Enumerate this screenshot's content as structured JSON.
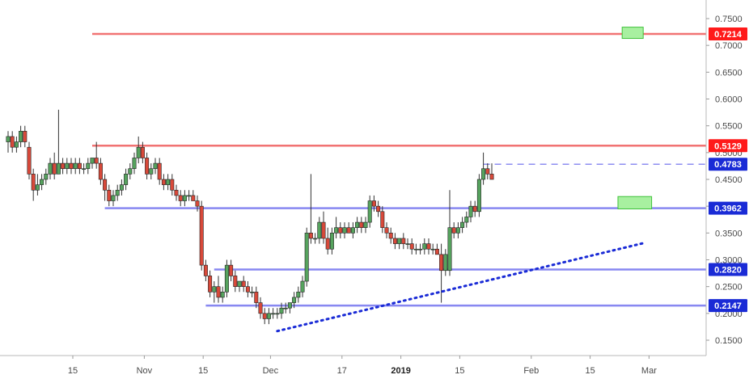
{
  "chart_data": {
    "type": "candlestick",
    "y_axis": {
      "range": [
        0.12,
        0.78
      ],
      "ticks": [
        "0.7500",
        "0.7000",
        "0.6500",
        "0.6000",
        "0.5500",
        "0.5000",
        "0.4500",
        "0.4000",
        "0.3500",
        "0.3000",
        "0.2500",
        "0.2000",
        "0.1500"
      ]
    },
    "x_axis": {
      "ticks": [
        {
          "label": "15",
          "day": 15
        },
        {
          "label": "Nov",
          "day": 32
        },
        {
          "label": "15",
          "day": 46
        },
        {
          "label": "Dec",
          "day": 62
        },
        {
          "label": "17",
          "day": 79
        },
        {
          "label": "2019",
          "day": 93,
          "bold": true
        },
        {
          "label": "15",
          "day": 107
        },
        {
          "label": "Feb",
          "day": 124
        },
        {
          "label": "15",
          "day": 138
        },
        {
          "label": "Mar",
          "day": 152
        }
      ]
    },
    "levels": [
      {
        "label": "0.7214",
        "value": 0.7214,
        "from_day": 20,
        "color": "#f06464",
        "tag_color": "#ff1a1a",
        "zone": {
          "from_day": 146,
          "to_day": 151,
          "lo": 0.713,
          "hi": 0.734
        }
      },
      {
        "label": "0.5129",
        "value": 0.5129,
        "from_day": 20,
        "color": "#f06464",
        "tag_color": "#ff1a1a"
      },
      {
        "label": "0.3962",
        "value": 0.3962,
        "from_day": 23,
        "color": "#7b7bf0",
        "tag_color": "#1a2bd6",
        "zone": {
          "from_day": 145,
          "to_day": 153,
          "lo": 0.395,
          "hi": 0.418
        }
      },
      {
        "label": "0.2820",
        "value": 0.282,
        "from_day": 49,
        "color": "#7b7bf0",
        "tag_color": "#1a2bd6"
      },
      {
        "label": "0.2147",
        "value": 0.2147,
        "from_day": 47,
        "color": "#7b7bf0",
        "tag_color": "#1a2bd6"
      }
    ],
    "current_price": {
      "label": "0.4783",
      "value": 0.4783,
      "color": "#8d8df0",
      "tag_color": "#1a2bd6"
    },
    "trendline": {
      "from": {
        "day": 64,
        "value": 0.167
      },
      "to": {
        "day": 151,
        "value": 0.331
      },
      "color": "#1a2bd6",
      "style": "dotted"
    },
    "ohlc": [
      [
        0,
        0.52,
        0.54,
        0.5,
        0.53
      ],
      [
        1,
        0.53,
        0.54,
        0.5,
        0.51
      ],
      [
        2,
        0.51,
        0.53,
        0.5,
        0.52
      ],
      [
        3,
        0.52,
        0.55,
        0.51,
        0.54
      ],
      [
        4,
        0.54,
        0.55,
        0.51,
        0.52
      ],
      [
        5,
        0.51,
        0.52,
        0.45,
        0.46
      ],
      [
        6,
        0.46,
        0.47,
        0.41,
        0.43
      ],
      [
        7,
        0.43,
        0.46,
        0.42,
        0.44
      ],
      [
        8,
        0.44,
        0.46,
        0.43,
        0.45
      ],
      [
        9,
        0.45,
        0.47,
        0.44,
        0.46
      ],
      [
        10,
        0.46,
        0.49,
        0.45,
        0.48
      ],
      [
        11,
        0.48,
        0.5,
        0.45,
        0.46
      ],
      [
        12,
        0.46,
        0.58,
        0.46,
        0.48
      ],
      [
        13,
        0.48,
        0.49,
        0.46,
        0.47
      ],
      [
        14,
        0.47,
        0.49,
        0.46,
        0.48
      ],
      [
        15,
        0.48,
        0.49,
        0.46,
        0.47
      ],
      [
        16,
        0.47,
        0.49,
        0.46,
        0.48
      ],
      [
        17,
        0.48,
        0.49,
        0.46,
        0.47
      ],
      [
        18,
        0.47,
        0.48,
        0.46,
        0.47
      ],
      [
        19,
        0.47,
        0.49,
        0.46,
        0.48
      ],
      [
        20,
        0.48,
        0.49,
        0.47,
        0.49
      ],
      [
        21,
        0.49,
        0.52,
        0.47,
        0.48
      ],
      [
        22,
        0.48,
        0.49,
        0.44,
        0.45
      ],
      [
        23,
        0.45,
        0.46,
        0.41,
        0.43
      ],
      [
        24,
        0.43,
        0.44,
        0.4,
        0.41
      ],
      [
        25,
        0.41,
        0.43,
        0.4,
        0.42
      ],
      [
        26,
        0.42,
        0.44,
        0.41,
        0.43
      ],
      [
        27,
        0.43,
        0.45,
        0.42,
        0.44
      ],
      [
        28,
        0.44,
        0.47,
        0.43,
        0.46
      ],
      [
        29,
        0.46,
        0.48,
        0.45,
        0.47
      ],
      [
        30,
        0.47,
        0.5,
        0.46,
        0.49
      ],
      [
        31,
        0.49,
        0.53,
        0.48,
        0.51
      ],
      [
        32,
        0.51,
        0.52,
        0.48,
        0.49
      ],
      [
        33,
        0.49,
        0.5,
        0.45,
        0.46
      ],
      [
        34,
        0.46,
        0.48,
        0.45,
        0.47
      ],
      [
        35,
        0.47,
        0.49,
        0.46,
        0.48
      ],
      [
        36,
        0.48,
        0.49,
        0.44,
        0.45
      ],
      [
        37,
        0.45,
        0.46,
        0.43,
        0.44
      ],
      [
        38,
        0.44,
        0.46,
        0.43,
        0.45
      ],
      [
        39,
        0.45,
        0.46,
        0.42,
        0.43
      ],
      [
        40,
        0.43,
        0.44,
        0.41,
        0.42
      ],
      [
        41,
        0.42,
        0.43,
        0.4,
        0.41
      ],
      [
        42,
        0.41,
        0.43,
        0.4,
        0.42
      ],
      [
        43,
        0.42,
        0.43,
        0.41,
        0.42
      ],
      [
        44,
        0.42,
        0.43,
        0.41,
        0.41
      ],
      [
        45,
        0.41,
        0.42,
        0.39,
        0.4
      ],
      [
        46,
        0.4,
        0.41,
        0.28,
        0.29
      ],
      [
        47,
        0.29,
        0.3,
        0.26,
        0.27
      ],
      [
        48,
        0.27,
        0.28,
        0.23,
        0.24
      ],
      [
        49,
        0.24,
        0.26,
        0.22,
        0.25
      ],
      [
        50,
        0.25,
        0.27,
        0.22,
        0.23
      ],
      [
        51,
        0.23,
        0.25,
        0.22,
        0.24
      ],
      [
        52,
        0.24,
        0.3,
        0.23,
        0.29
      ],
      [
        53,
        0.29,
        0.3,
        0.26,
        0.27
      ],
      [
        54,
        0.27,
        0.28,
        0.24,
        0.25
      ],
      [
        55,
        0.25,
        0.26,
        0.24,
        0.26
      ],
      [
        56,
        0.26,
        0.27,
        0.24,
        0.25
      ],
      [
        57,
        0.25,
        0.26,
        0.23,
        0.24
      ],
      [
        58,
        0.24,
        0.25,
        0.23,
        0.24
      ],
      [
        59,
        0.24,
        0.25,
        0.21,
        0.22
      ],
      [
        60,
        0.22,
        0.23,
        0.19,
        0.2
      ],
      [
        61,
        0.2,
        0.21,
        0.18,
        0.19
      ],
      [
        62,
        0.19,
        0.21,
        0.18,
        0.2
      ],
      [
        63,
        0.2,
        0.21,
        0.19,
        0.2
      ],
      [
        64,
        0.2,
        0.21,
        0.19,
        0.2
      ],
      [
        65,
        0.2,
        0.22,
        0.19,
        0.21
      ],
      [
        66,
        0.21,
        0.22,
        0.2,
        0.21
      ],
      [
        67,
        0.21,
        0.22,
        0.2,
        0.22
      ],
      [
        68,
        0.22,
        0.24,
        0.21,
        0.23
      ],
      [
        69,
        0.23,
        0.25,
        0.22,
        0.24
      ],
      [
        70,
        0.24,
        0.27,
        0.23,
        0.26
      ],
      [
        71,
        0.26,
        0.36,
        0.25,
        0.35
      ],
      [
        72,
        0.35,
        0.46,
        0.33,
        0.34
      ],
      [
        73,
        0.34,
        0.35,
        0.33,
        0.34
      ],
      [
        74,
        0.34,
        0.38,
        0.33,
        0.37
      ],
      [
        75,
        0.37,
        0.39,
        0.33,
        0.34
      ],
      [
        76,
        0.34,
        0.36,
        0.31,
        0.32
      ],
      [
        77,
        0.32,
        0.36,
        0.31,
        0.35
      ],
      [
        78,
        0.35,
        0.38,
        0.34,
        0.36
      ],
      [
        79,
        0.36,
        0.37,
        0.34,
        0.35
      ],
      [
        80,
        0.35,
        0.37,
        0.34,
        0.36
      ],
      [
        81,
        0.36,
        0.37,
        0.35,
        0.35
      ],
      [
        82,
        0.35,
        0.37,
        0.34,
        0.36
      ],
      [
        83,
        0.36,
        0.38,
        0.35,
        0.37
      ],
      [
        84,
        0.37,
        0.38,
        0.35,
        0.36
      ],
      [
        85,
        0.36,
        0.38,
        0.35,
        0.37
      ],
      [
        86,
        0.37,
        0.42,
        0.36,
        0.41
      ],
      [
        87,
        0.41,
        0.42,
        0.39,
        0.4
      ],
      [
        88,
        0.4,
        0.41,
        0.38,
        0.39
      ],
      [
        89,
        0.39,
        0.4,
        0.35,
        0.36
      ],
      [
        90,
        0.36,
        0.37,
        0.34,
        0.35
      ],
      [
        91,
        0.35,
        0.36,
        0.33,
        0.34
      ],
      [
        92,
        0.34,
        0.35,
        0.32,
        0.33
      ],
      [
        93,
        0.33,
        0.34,
        0.32,
        0.34
      ],
      [
        94,
        0.34,
        0.35,
        0.32,
        0.33
      ],
      [
        95,
        0.33,
        0.34,
        0.32,
        0.33
      ],
      [
        96,
        0.33,
        0.34,
        0.31,
        0.32
      ],
      [
        97,
        0.32,
        0.33,
        0.31,
        0.32
      ],
      [
        98,
        0.32,
        0.33,
        0.31,
        0.32
      ],
      [
        99,
        0.32,
        0.34,
        0.31,
        0.33
      ],
      [
        100,
        0.33,
        0.34,
        0.31,
        0.32
      ],
      [
        101,
        0.32,
        0.33,
        0.31,
        0.32
      ],
      [
        102,
        0.32,
        0.33,
        0.31,
        0.31
      ],
      [
        103,
        0.31,
        0.33,
        0.22,
        0.28
      ],
      [
        104,
        0.28,
        0.32,
        0.27,
        0.31
      ],
      [
        105,
        0.28,
        0.43,
        0.27,
        0.36
      ],
      [
        106,
        0.36,
        0.37,
        0.34,
        0.35
      ],
      [
        107,
        0.35,
        0.37,
        0.34,
        0.36
      ],
      [
        108,
        0.36,
        0.38,
        0.35,
        0.37
      ],
      [
        109,
        0.37,
        0.39,
        0.36,
        0.38
      ],
      [
        110,
        0.38,
        0.41,
        0.37,
        0.4
      ],
      [
        111,
        0.4,
        0.41,
        0.38,
        0.39
      ],
      [
        112,
        0.39,
        0.46,
        0.38,
        0.45
      ],
      [
        113,
        0.45,
        0.5,
        0.44,
        0.47
      ],
      [
        114,
        0.47,
        0.48,
        0.45,
        0.46
      ],
      [
        115,
        0.46,
        0.48,
        0.45,
        0.45
      ]
    ]
  }
}
